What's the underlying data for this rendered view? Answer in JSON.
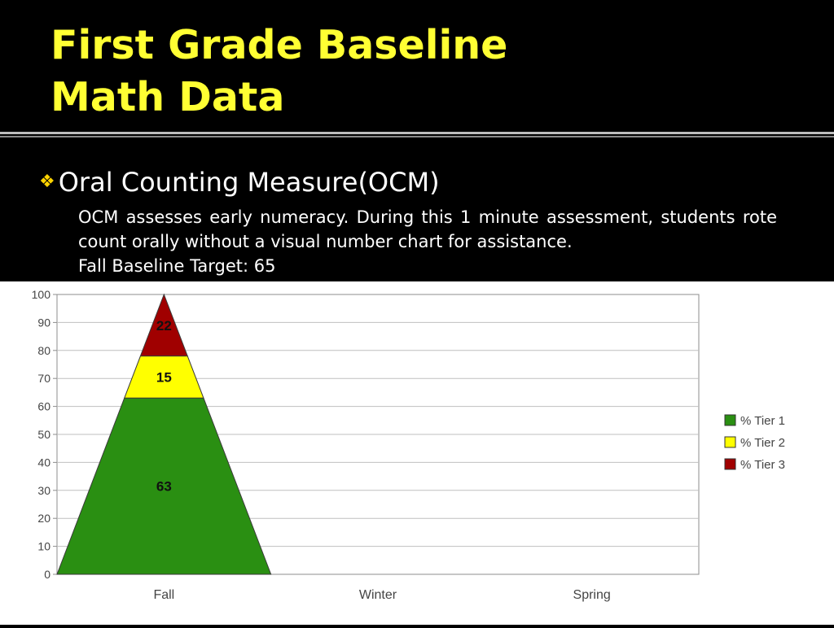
{
  "slide": {
    "title_line1": "First Grade Baseline",
    "title_line2": "Math Data",
    "bullet_icon": "diamond-cluster-icon",
    "bullet_heading": "Oral Counting Measure(OCM)",
    "description": "OCM assesses early numeracy.  During this  1 minute assessment, students rote count orally without a visual number chart for assistance.",
    "target_text": "Fall Baseline Target: 65"
  },
  "colors": {
    "title": "#ffff33",
    "tier1": "#2a8f12",
    "tier2": "#ffff00",
    "tier3": "#a00000"
  },
  "chart_data": {
    "type": "bar",
    "stacked": true,
    "bar_shape": "pyramid",
    "categories": [
      "Fall",
      "Winter",
      "Spring"
    ],
    "series": [
      {
        "name": "% Tier 1",
        "values": [
          63,
          null,
          null
        ],
        "color": "#2a8f12"
      },
      {
        "name": "% Tier 2",
        "values": [
          15,
          null,
          null
        ],
        "color": "#ffff00"
      },
      {
        "name": "% Tier 3",
        "values": [
          22,
          null,
          null
        ],
        "color": "#a00000"
      }
    ],
    "ylim": [
      0,
      100
    ],
    "yticks": [
      0,
      10,
      20,
      30,
      40,
      50,
      60,
      70,
      80,
      90,
      100
    ],
    "grid": true,
    "legend": "right"
  }
}
